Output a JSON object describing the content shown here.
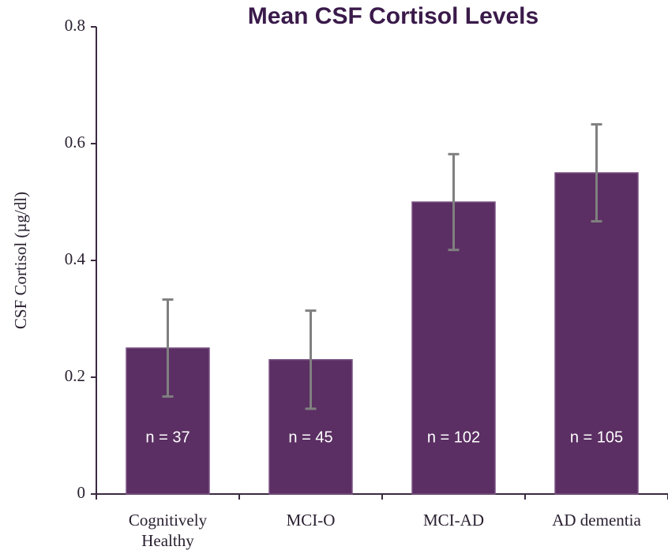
{
  "chart_data": {
    "type": "bar",
    "title": "Mean CSF Cortisol Levels",
    "y_label": "CSF Cortisol (µg/dl)",
    "categories": [
      "Cognitively Healthy",
      "MCI-O",
      "MCI-AD",
      "AD dementia"
    ],
    "values": [
      0.25,
      0.23,
      0.5,
      0.55
    ],
    "errors": [
      0.083,
      0.084,
      0.082,
      0.083
    ],
    "bar_labels": [
      "n = 37",
      "n = 45",
      "n = 102",
      "n = 105"
    ],
    "color": "#5b2f63",
    "error_color": "#808080",
    "ylim": [
      0,
      0.8
    ],
    "yticks": [
      0,
      0.2,
      0.4,
      0.6,
      0.8
    ],
    "grid": false
  }
}
